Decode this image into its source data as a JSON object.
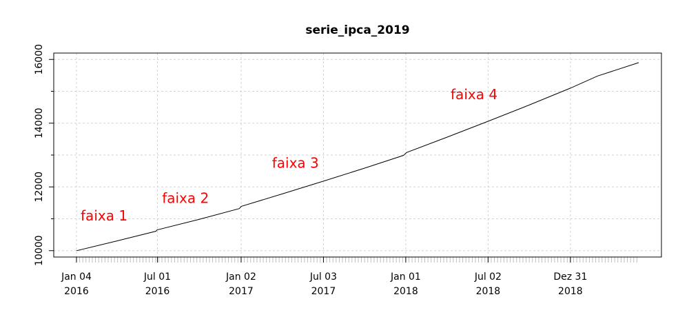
{
  "chart_data": {
    "type": "line",
    "title": "serie_ipca_2019",
    "xlabel": "",
    "ylabel": "",
    "ylim": [
      9800,
      16200
    ],
    "grid": true,
    "x_range": [
      "2016-01-04",
      "2019-05-31"
    ],
    "y_ticks": [
      10000,
      12000,
      14000,
      16000
    ],
    "y_tick_labels": [
      "10000",
      "12000",
      "14000",
      "16000"
    ],
    "x_ticks": [
      {
        "date": "2016-01-04",
        "label_line1": "Jan 04",
        "label_line2": "2016"
      },
      {
        "date": "2016-07-01",
        "label_line1": "Jul 01",
        "label_line2": "2016"
      },
      {
        "date": "2017-01-02",
        "label_line1": "Jan 02",
        "label_line2": "2017"
      },
      {
        "date": "2017-07-03",
        "label_line1": "Jul 03",
        "label_line2": "2017"
      },
      {
        "date": "2018-01-01",
        "label_line1": "Jan 01",
        "label_line2": "2018"
      },
      {
        "date": "2018-07-02",
        "label_line1": "Jul 02",
        "label_line2": "2018"
      },
      {
        "date": "2018-12-31",
        "label_line1": "Dez 31",
        "label_line2": "2018"
      }
    ],
    "series": [
      {
        "color": "#000000",
        "points": [
          {
            "x": "2016-01-04",
            "y": 10000
          },
          {
            "x": "2016-04-01",
            "y": 10300
          },
          {
            "x": "2016-06-28",
            "y": 10610
          },
          {
            "x": "2016-06-30",
            "y": 10650
          },
          {
            "x": "2016-10-01",
            "y": 10980
          },
          {
            "x": "2016-12-29",
            "y": 11320
          },
          {
            "x": "2017-01-02",
            "y": 11390
          },
          {
            "x": "2017-04-03",
            "y": 11780
          },
          {
            "x": "2017-07-03",
            "y": 12180
          },
          {
            "x": "2017-10-02",
            "y": 12590
          },
          {
            "x": "2017-12-27",
            "y": 12990
          },
          {
            "x": "2018-01-03",
            "y": 13080
          },
          {
            "x": "2018-04-02",
            "y": 13560
          },
          {
            "x": "2018-07-02",
            "y": 14060
          },
          {
            "x": "2018-10-01",
            "y": 14570
          },
          {
            "x": "2018-12-31",
            "y": 15100
          },
          {
            "x": "2019-03-01",
            "y": 15480
          },
          {
            "x": "2019-05-31",
            "y": 15900
          }
        ]
      }
    ],
    "annotations": [
      {
        "text": "faixa 1",
        "x": "2016-03-05",
        "y": 10950,
        "color": "#ff0000"
      },
      {
        "text": "faixa 2",
        "x": "2016-09-01",
        "y": 11500,
        "color": "#ff0000"
      },
      {
        "text": "faixa 3",
        "x": "2017-05-02",
        "y": 12600,
        "color": "#ff0000"
      },
      {
        "text": "faixa 4",
        "x": "2018-06-01",
        "y": 14750,
        "color": "#ff0000"
      }
    ],
    "colors": {
      "line": "#000000",
      "annotation": "#ff0000",
      "grid": "#d3d3d3",
      "minor_ticks": "#bebebe"
    }
  }
}
